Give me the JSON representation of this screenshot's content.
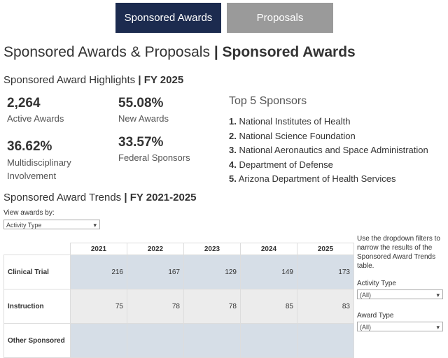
{
  "tabs": [
    "Sponsored Awards",
    "Proposals"
  ],
  "header": {
    "title": "Sponsored Awards & Proposals",
    "title_bold": "| Sponsored Awards"
  },
  "highlights": {
    "heading": "Sponsored Award Highlights",
    "heading_bold": "| FY 2025",
    "kpis": [
      {
        "value": "2,264",
        "label": "Active Awards"
      },
      {
        "value": "55.08%",
        "label": "New Awards"
      },
      {
        "value": "36.62%",
        "label": "Multidisciplinary Involvement"
      },
      {
        "value": "33.57%",
        "label": "Federal Sponsors"
      }
    ]
  },
  "top_sponsors": {
    "heading": "Top 5 Sponsors",
    "items": [
      {
        "rank": "1.",
        "name": "National Institutes of Health"
      },
      {
        "rank": "2.",
        "name": "National Science Foundation"
      },
      {
        "rank": "3.",
        "name": "National Aeronautics and Space Administration"
      },
      {
        "rank": "4.",
        "name": "Department of Defense"
      },
      {
        "rank": "5.",
        "name": "Arizona Department of Health Services"
      }
    ]
  },
  "trends": {
    "heading": "Sponsored Award Trends",
    "heading_bold": "| FY 2021-2025",
    "view_label": "View awards by:",
    "view_select": "Activity Type",
    "table": {
      "columns": [
        "2021",
        "2022",
        "2023",
        "2024",
        "2025"
      ],
      "rows": [
        {
          "label": "Clinical Trial",
          "values": [
            216,
            167,
            129,
            149,
            173
          ]
        },
        {
          "label": "Instruction",
          "values": [
            75,
            78,
            78,
            85,
            83
          ]
        },
        {
          "label": "Other Sponsored"
        }
      ]
    }
  },
  "filters": {
    "note": "Use the dropdown filters to narrow the results of the Sponsored Award Trends table.",
    "items": [
      {
        "label": "Activity Type",
        "value": "(All)"
      },
      {
        "label": "Award Type",
        "value": "(All)"
      }
    ]
  }
}
